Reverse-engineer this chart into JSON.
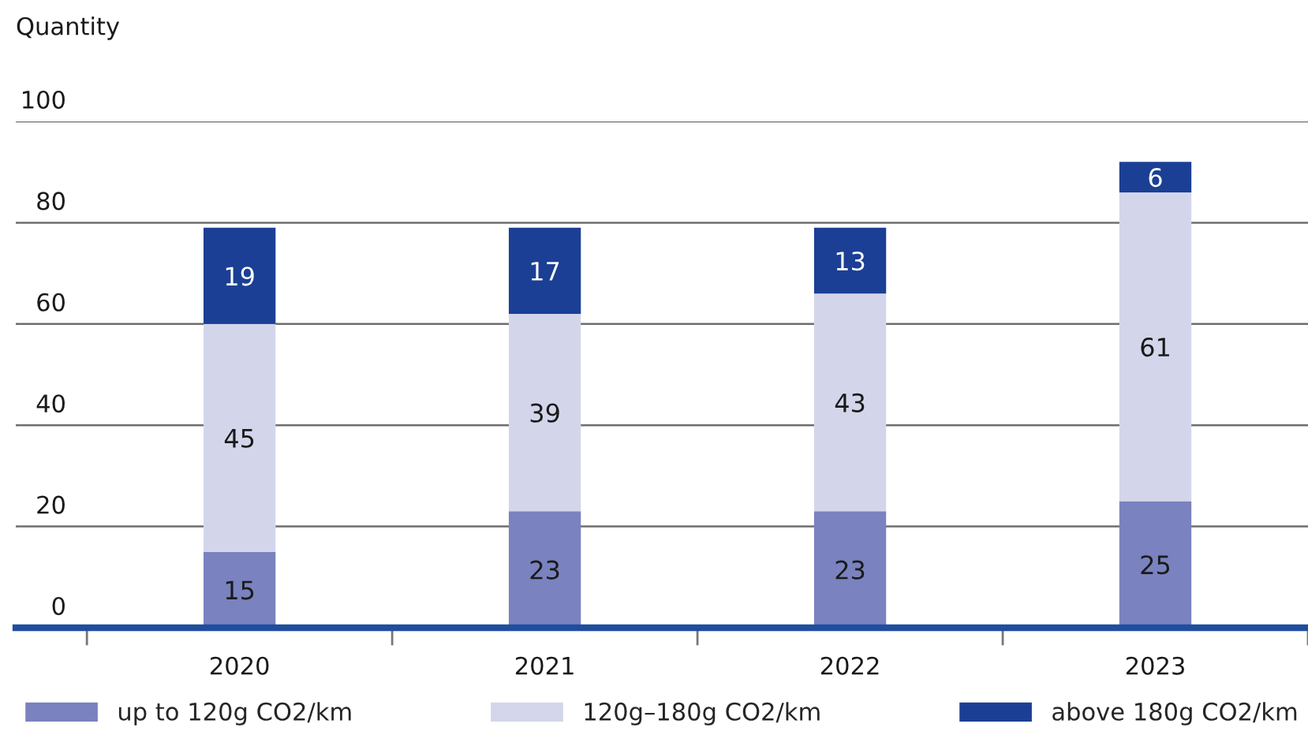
{
  "chart_data": {
    "type": "bar",
    "stacked": true,
    "ylabel": "Quantity",
    "categories": [
      "2020",
      "2021",
      "2022",
      "2023"
    ],
    "series": [
      {
        "name": "up to 120g CO2/km",
        "color": "#7a82bf",
        "values": [
          15,
          23,
          23,
          25
        ]
      },
      {
        "name": "120g–180g CO2/km",
        "color": "#d3d6ea",
        "values": [
          45,
          39,
          43,
          61
        ]
      },
      {
        "name": "above 180g CO2/km",
        "color": "#1b3f94",
        "values": [
          19,
          17,
          13,
          6
        ]
      }
    ],
    "ylim": [
      0,
      100
    ],
    "yticks": [
      0,
      20,
      40,
      60,
      80,
      100
    ],
    "grid": "y",
    "legend": "bottom",
    "data_labels": true
  }
}
